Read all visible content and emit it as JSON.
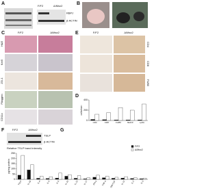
{
  "panels": [
    "A",
    "B",
    "C",
    "D",
    "E",
    "F",
    "G"
  ],
  "panel_a": {
    "columns": [
      "F/F2",
      "Δ/Msx2"
    ],
    "blots": [
      "RBPJ",
      "β-ACTIN"
    ]
  },
  "panel_c": {
    "columns": [
      "F/F2",
      "Δ/Msx2"
    ],
    "rows": [
      "H&E",
      "Ker5",
      "ZO-1",
      "Filaggrin",
      "CD11c"
    ]
  },
  "panel_e": {
    "columns": [
      "F/F2",
      "Δ/Msx2"
    ],
    "rows": [
      "CD4",
      "CD8",
      "F4/80"
    ]
  },
  "panel_f": {
    "columns": [
      "F/F2",
      "Δ/Msx2"
    ],
    "blots": [
      "TSLP",
      "β-ACTIN"
    ],
    "note": "Relative TSLP band intensity"
  },
  "chart_data": [
    {
      "type": "bar",
      "ylabel": "cells/mm²",
      "categories": [
        "CD4",
        "CD8",
        "F4/80",
        "MHCII",
        "Ly6G"
      ],
      "series": [
        {
          "name": "F/F2",
          "color": "#111111",
          "values": [
            20,
            15,
            10,
            10,
            10
          ]
        },
        {
          "name": "Δ/Msx2",
          "color": "#ffffff",
          "values": [
            120,
            150,
            250,
            200,
            320
          ]
        }
      ],
      "ylim": [
        0,
        400
      ],
      "yticks": [
        0,
        200,
        400
      ]
    },
    {
      "type": "bar",
      "ylabel": "pg/mg protein",
      "categories": [
        "TSLP",
        "IL-1β",
        "IL-4",
        "IL-5",
        "IL-6",
        "IL-10",
        "IL-13",
        "IL-17",
        "IFN-γ",
        "TNF-α",
        "GM-CSF",
        "IL-12",
        "IL-2",
        "IL-3"
      ],
      "series": [
        {
          "name": "F/F2",
          "color": "#111111",
          "values": [
            40,
            90,
            10,
            8,
            12,
            30,
            10,
            5,
            20,
            15,
            10,
            12,
            8,
            6
          ]
        },
        {
          "name": "Δ/Msx2",
          "color": "#ffffff",
          "values": [
            230,
            140,
            30,
            25,
            60,
            45,
            35,
            15,
            40,
            30,
            20,
            25,
            15,
            12
          ]
        }
      ],
      "ylim": [
        0,
        250
      ],
      "yticks": [
        0,
        50,
        100,
        150,
        200,
        250
      ],
      "legend": "upper-right"
    }
  ]
}
